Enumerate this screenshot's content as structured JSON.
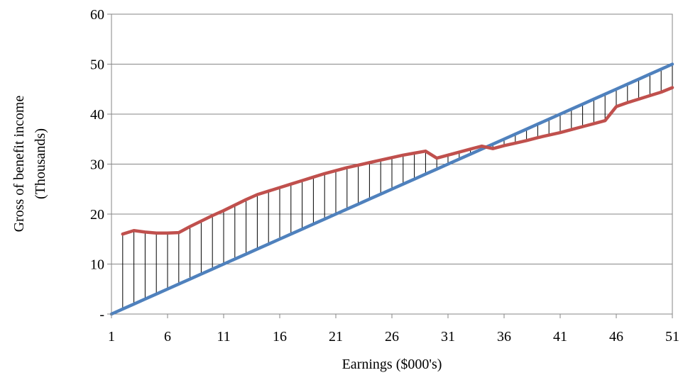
{
  "chart_data": {
    "type": "line",
    "xlabel": "Earnings ($000's)",
    "ylabel": [
      "Gross of benefit income",
      "(Thousands)"
    ],
    "x": [
      1,
      2,
      3,
      4,
      5,
      6,
      7,
      8,
      9,
      10,
      11,
      12,
      13,
      14,
      15,
      16,
      17,
      18,
      19,
      20,
      21,
      22,
      23,
      24,
      25,
      26,
      27,
      28,
      29,
      30,
      31,
      32,
      33,
      34,
      35,
      36,
      37,
      38,
      39,
      40,
      41,
      42,
      43,
      44,
      45,
      46,
      47,
      48,
      49,
      50,
      51
    ],
    "x_tick_values": [
      1,
      6,
      11,
      16,
      21,
      26,
      31,
      36,
      41,
      46,
      51
    ],
    "x_tick_labels": [
      "1",
      "6",
      "11",
      "16",
      "21",
      "26",
      "31",
      "36",
      "41",
      "46",
      "51"
    ],
    "y_tick_values": [
      0,
      10,
      20,
      30,
      40,
      50,
      60
    ],
    "y_tick_labels": [
      "-",
      "10",
      "20",
      "30",
      "40",
      "50",
      "60"
    ],
    "ylim": [
      0,
      60
    ],
    "xlim": [
      1,
      51
    ],
    "grid": true,
    "series": [
      {
        "color": "#4f81bd",
        "values": [
          0,
          1,
          2,
          3,
          4,
          5,
          6,
          7,
          8,
          9,
          10,
          11,
          12,
          13,
          14,
          15,
          16,
          17,
          18,
          19,
          20,
          21,
          22,
          23,
          24,
          25,
          26,
          27,
          28,
          29,
          30,
          31,
          32,
          33,
          34,
          35,
          36,
          37,
          38,
          39,
          40,
          41,
          42,
          43,
          44,
          45,
          46,
          47,
          48,
          49,
          50
        ]
      },
      {
        "color": "#c0504d",
        "values": [
          null,
          16.0,
          16.7,
          16.4,
          16.2,
          16.2,
          16.3,
          17.5,
          18.6,
          19.7,
          20.7,
          21.8,
          22.9,
          23.9,
          24.6,
          25.3,
          26.0,
          26.7,
          27.4,
          28.1,
          28.7,
          29.3,
          29.8,
          30.3,
          30.8,
          31.3,
          31.8,
          32.2,
          32.6,
          31.2,
          31.8,
          32.4,
          33.0,
          33.6,
          33.1,
          33.7,
          34.2,
          34.7,
          35.3,
          35.8,
          36.3,
          36.9,
          37.5,
          38.1,
          38.7,
          41.5,
          42.3,
          43.0,
          43.7,
          44.4,
          45.3
        ]
      }
    ],
    "drop_lines": {
      "from": 2,
      "to": 51,
      "color": "#000000"
    }
  }
}
